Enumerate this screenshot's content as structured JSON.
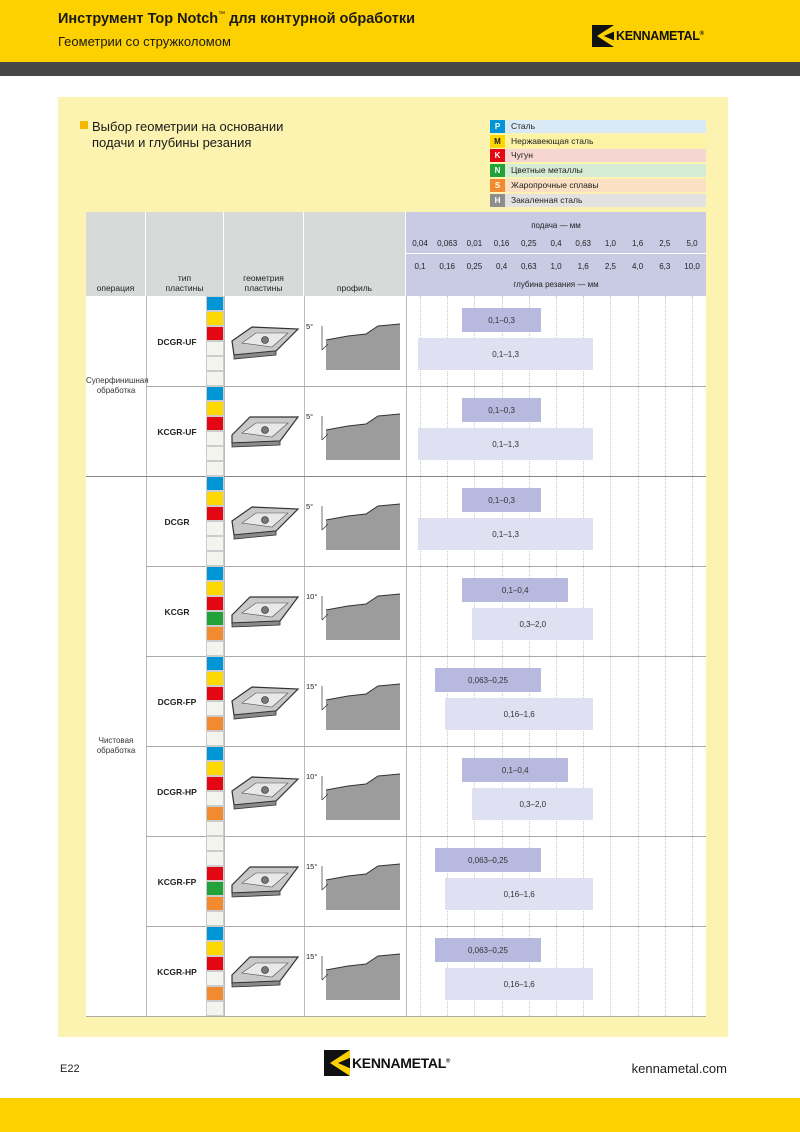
{
  "header": {
    "title_main": "Инструмент Top Notch",
    "title_tm": "™",
    "title_rest": " для контурной обработки",
    "subtitle": "Геометрии со стружколомом"
  },
  "brand": {
    "name": "KENNAMETAL",
    "mark": "®"
  },
  "section_title_line1": "Выбор геометрии на основании",
  "section_title_line2": "подачи и глубины резания",
  "legend": [
    {
      "code": "P",
      "label": "Сталь",
      "color": "#0096d6",
      "bg": "#d9e9f5"
    },
    {
      "code": "M",
      "label": "Нержавеющая сталь",
      "color": "#ffd800",
      "bg": "#fdf3a5",
      "codeText": "#222"
    },
    {
      "code": "K",
      "label": "Чугун",
      "color": "#e30613",
      "bg": "#f7d6d2"
    },
    {
      "code": "N",
      "label": "Цветные металлы",
      "color": "#22a33a",
      "bg": "#d7ecd4"
    },
    {
      "code": "S",
      "label": "Жаропрочные сплавы",
      "color": "#f28b30",
      "bg": "#fbe0c4"
    },
    {
      "code": "H",
      "label": "Закаленная сталь",
      "color": "#8e8e8e",
      "bg": "#e2e2e2"
    }
  ],
  "table_header": {
    "operation": "операция",
    "insert_type_1": "тип",
    "insert_type_2": "пластины",
    "geometry_1": "геометрия",
    "geometry_2": "пластины",
    "profile": "профиль",
    "feed_title": "подача — мм",
    "feed_ticks": [
      "0,04",
      "0,063",
      "0,01",
      "0,16",
      "0,25",
      "0,4",
      "0,63",
      "1,0",
      "1,6",
      "2,5",
      "5,0"
    ],
    "doc_ticks": [
      "0,1",
      "0,16",
      "0,25",
      "0,4",
      "0,63",
      "1,0",
      "1,6",
      "2,5",
      "4,0",
      "6,3",
      "10,0"
    ],
    "doc_title": "глубина резания — мм"
  },
  "operations": [
    {
      "label_1": "Суперфинишная",
      "label_2": "обработка"
    },
    {
      "label_1": "Чистовая",
      "label_2": "обработка"
    }
  ],
  "rows": [
    {
      "name": "DCGR-UF",
      "angle": "5°",
      "active": [
        "P",
        "M",
        "K",
        "",
        "",
        ""
      ],
      "feed": {
        "label": "0,1–0,3",
        "from": 0.1,
        "to": 0.3
      },
      "depth": {
        "label": "0,1–1,3",
        "from": 0.1,
        "to": 1.3
      }
    },
    {
      "name": "KCGR-UF",
      "angle": "5°",
      "active": [
        "P",
        "M",
        "K",
        "",
        "",
        ""
      ],
      "feed": {
        "label": "0,1–0,3",
        "from": 0.1,
        "to": 0.3
      },
      "depth": {
        "label": "0,1–1,3",
        "from": 0.1,
        "to": 1.3
      }
    },
    {
      "name": "DCGR",
      "angle": "5°",
      "active": [
        "P",
        "M",
        "K",
        "",
        "",
        ""
      ],
      "feed": {
        "label": "0,1–0,3",
        "from": 0.1,
        "to": 0.3
      },
      "depth": {
        "label": "0,1–1,3",
        "from": 0.1,
        "to": 1.3
      }
    },
    {
      "name": "KCGR",
      "angle": "10°",
      "active": [
        "P",
        "M",
        "K",
        "N",
        "S",
        ""
      ],
      "feed": {
        "label": "0,1–0,4",
        "from": 0.1,
        "to": 0.4
      },
      "depth": {
        "label": "0,3–2,0",
        "from": 0.3,
        "to": 2.0
      }
    },
    {
      "name": "DCGR-FP",
      "angle": "15°",
      "active": [
        "P",
        "M",
        "K",
        "",
        "S",
        ""
      ],
      "feed": {
        "label": "0,063–0,25",
        "from": 0.063,
        "to": 0.25
      },
      "depth": {
        "label": "0,16–1,6",
        "from": 0.16,
        "to": 1.6
      }
    },
    {
      "name": "DCGR-HP",
      "angle": "10°",
      "active": [
        "P",
        "M",
        "K",
        "",
        "S",
        ""
      ],
      "feed": {
        "label": "0,1–0,4",
        "from": 0.1,
        "to": 0.4
      },
      "depth": {
        "label": "0,3–2,0",
        "from": 0.3,
        "to": 2.0
      }
    },
    {
      "name": "KCGR-FP",
      "angle": "15°",
      "active": [
        "",
        "",
        "K",
        "N",
        "S",
        ""
      ],
      "feed": {
        "label": "0,063–0,25",
        "from": 0.063,
        "to": 0.25
      },
      "depth": {
        "label": "0,16–1,6",
        "from": 0.16,
        "to": 1.6
      }
    },
    {
      "name": "KCGR-HP",
      "angle": "15°",
      "active": [
        "P",
        "M",
        "K",
        "",
        "S",
        ""
      ],
      "feed": {
        "label": "0,063–0,25",
        "from": 0.063,
        "to": 0.25
      },
      "depth": {
        "label": "0,16–1,6",
        "from": 0.16,
        "to": 1.6
      }
    }
  ],
  "footer": {
    "page": "E22",
    "site": "kennametal.com"
  }
}
